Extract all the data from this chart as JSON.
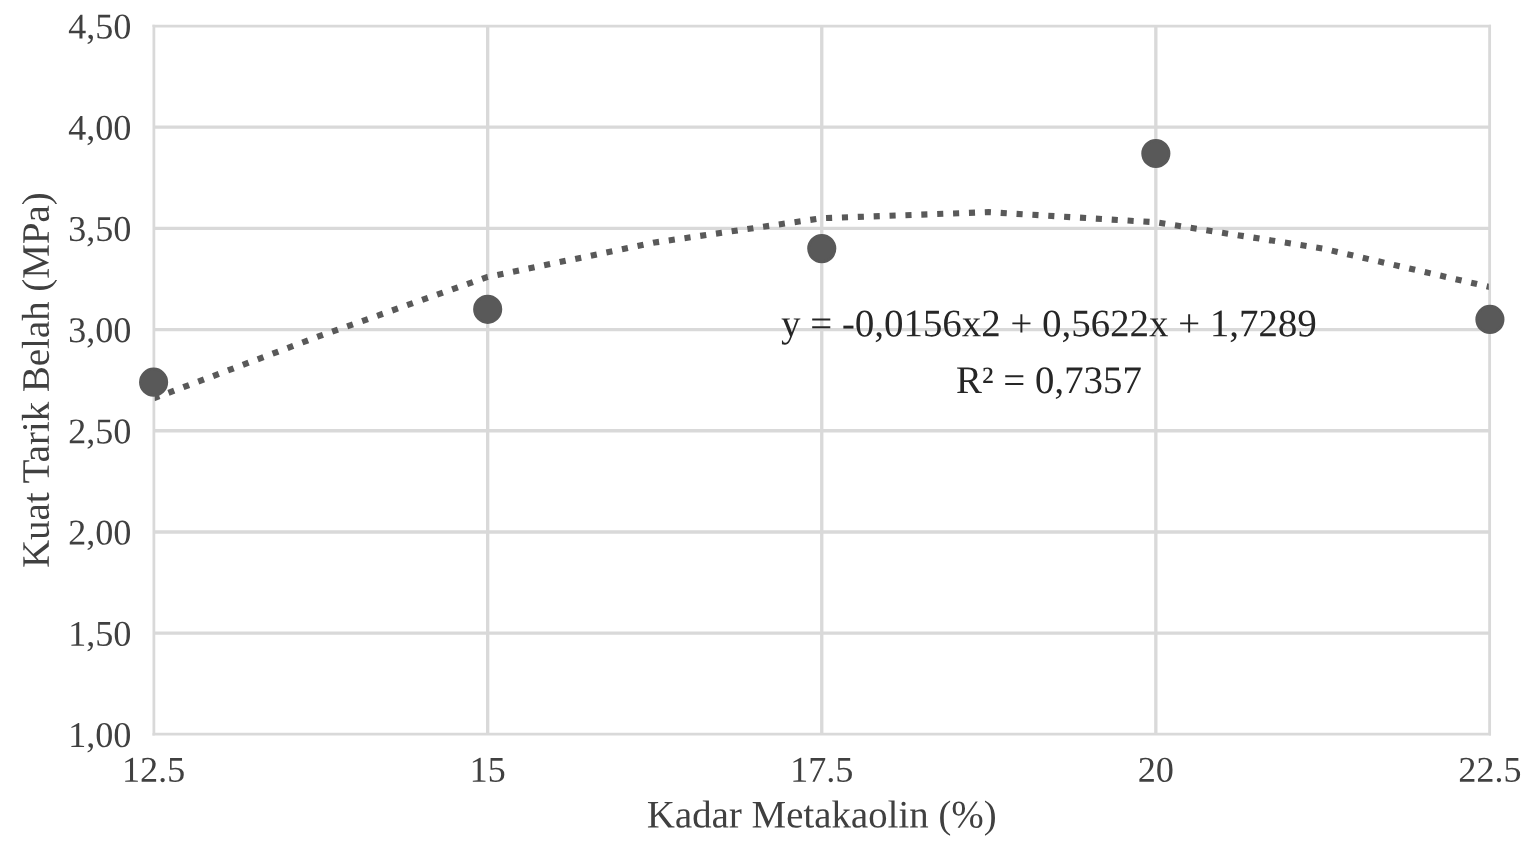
{
  "chart_data": {
    "type": "scatter",
    "xlabel": "Kadar Metakaolin (%)",
    "ylabel": "Kuat Tarik Belah (MPa)",
    "series": [
      {
        "color": "#595959",
        "marker": "circle",
        "x": [
          12.5,
          15,
          17.5,
          20,
          22.5
        ],
        "values": [
          2.74,
          3.1,
          3.4,
          3.87,
          3.05
        ]
      },
      {
        "type": "line",
        "color": "#595959",
        "line_style": "dotted",
        "marker": "none",
        "x": [
          12.5,
          13.75,
          15,
          16.25,
          17.5,
          18.75,
          20,
          21.25,
          22.5
        ],
        "values": [
          2.66,
          2.97,
          3.26,
          3.43,
          3.55,
          3.58,
          3.53,
          3.4,
          3.21
        ]
      }
    ],
    "annotations": [
      "y = -0,0156x2 + 0,5622x + 1,7289",
      "R² = 0,7357"
    ],
    "xlim": [
      12.5,
      22.5
    ],
    "xticks": [
      12.5,
      15,
      17.5,
      20,
      22.5
    ],
    "ylim": [
      1.0,
      4.5
    ],
    "yticks": [
      {
        "value": 1.0,
        "label": "1,00"
      },
      {
        "value": 1.5,
        "label": "1,50"
      },
      {
        "value": 2.0,
        "label": "2,00"
      },
      {
        "value": 2.5,
        "label": "2,50"
      },
      {
        "value": 3.0,
        "label": "3,00"
      },
      {
        "value": 3.5,
        "label": "3,50"
      },
      {
        "value": 4.0,
        "label": "4,00"
      },
      {
        "value": 4.5,
        "label": "4,50"
      }
    ],
    "grid": true,
    "legend": false
  }
}
